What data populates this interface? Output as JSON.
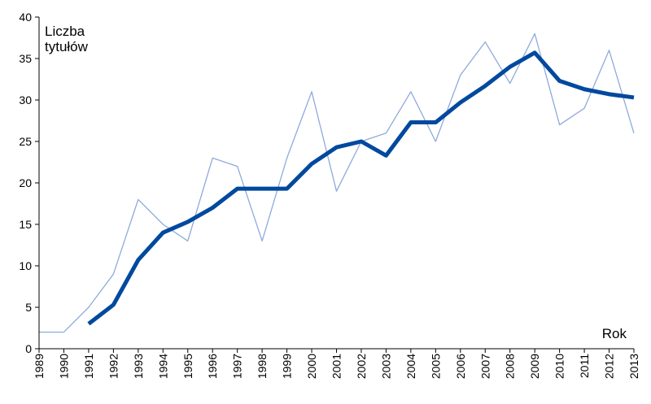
{
  "chart_data": {
    "type": "line",
    "ylabel_lines": [
      "Liczba",
      "tytułów"
    ],
    "xlabel": "Rok",
    "ylim": [
      0,
      40
    ],
    "yticks": [
      0,
      5,
      10,
      15,
      20,
      25,
      30,
      35,
      40
    ],
    "grid": false,
    "x": [
      "1989",
      "1990",
      "1991",
      "1992",
      "1993",
      "1994",
      "1995",
      "1996",
      "1997",
      "1998",
      "1999",
      "2000",
      "2001",
      "2002",
      "2003",
      "2004",
      "2005",
      "2006",
      "2007",
      "2008",
      "2009",
      "2010",
      "2011",
      "2012",
      "2013"
    ],
    "series": [
      {
        "color": "#8eaadb",
        "width": 1.3,
        "values": [
          2,
          2,
          5,
          9,
          18,
          15,
          13,
          23,
          22,
          13,
          23,
          31,
          19,
          25,
          26,
          31,
          25,
          33,
          37,
          32,
          38,
          27,
          29,
          36,
          26
        ]
      },
      {
        "color": "#00499e",
        "width": 5,
        "values": [
          null,
          null,
          3,
          5.3,
          10.7,
          14,
          15.3,
          17,
          19.3,
          19.3,
          19.3,
          22.3,
          24.3,
          25,
          23.3,
          27.3,
          27.3,
          29.7,
          31.7,
          34,
          35.7,
          32.3,
          31.3,
          30.7,
          30.3
        ]
      }
    ],
    "colors": {
      "axis": "#000000"
    }
  }
}
